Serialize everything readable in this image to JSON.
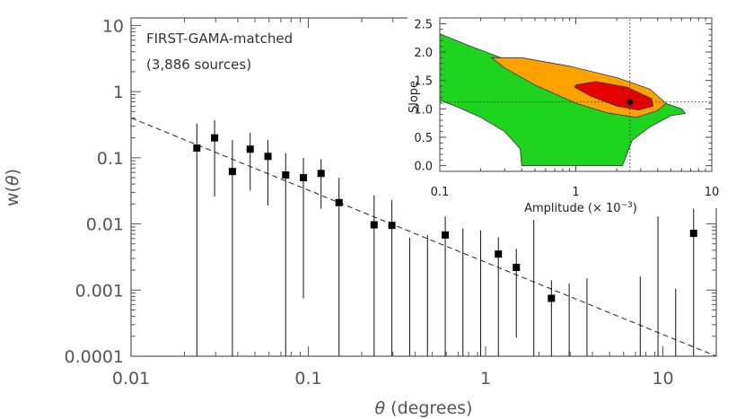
{
  "chart_data": [
    {
      "type": "scatter",
      "title": "",
      "xlabel_symbol": "θ",
      "xlabel_rest": " (degrees)",
      "ylabel_prefix": "w(",
      "ylabel_symbol": "θ",
      "ylabel_suffix": ")",
      "xscale": "log",
      "yscale": "log",
      "xlim": [
        0.01,
        20
      ],
      "ylim": [
        0.0001,
        13
      ],
      "x_tick_labels": [
        "0.01",
        "0.1",
        "1",
        "10"
      ],
      "x_tick_values": [
        0.01,
        0.1,
        1,
        10
      ],
      "y_tick_labels": [
        "0.0001",
        "0.001",
        "0.01",
        "0.1",
        "1",
        "10"
      ],
      "y_tick_values": [
        0.0001,
        0.001,
        0.01,
        0.1,
        1,
        10
      ],
      "annotations": [
        "FIRST-GAMA-matched",
        "(3,886 sources)"
      ],
      "points": [
        {
          "x": 0.0235,
          "y": 0.14,
          "ylo": 0.0001,
          "yhi": 0.33
        },
        {
          "x": 0.0296,
          "y": 0.2,
          "ylo": 0.026,
          "yhi": 0.37
        },
        {
          "x": 0.0373,
          "y": 0.062,
          "ylo": 0.0001,
          "yhi": 0.185
        },
        {
          "x": 0.047,
          "y": 0.135,
          "ylo": 0.032,
          "yhi": 0.24
        },
        {
          "x": 0.0592,
          "y": 0.105,
          "ylo": 0.019,
          "yhi": 0.185
        },
        {
          "x": 0.0745,
          "y": 0.055,
          "ylo": 0.0001,
          "yhi": 0.118
        },
        {
          "x": 0.0938,
          "y": 0.05,
          "ylo": 0.00075,
          "yhi": 0.1
        },
        {
          "x": 0.118,
          "y": 0.058,
          "ylo": 0.017,
          "yhi": 0.095
        },
        {
          "x": 0.149,
          "y": 0.021,
          "ylo": 0.0001,
          "yhi": 0.05
        },
        {
          "x": 0.235,
          "y": 0.0097,
          "ylo": 0.0001,
          "yhi": 0.027
        },
        {
          "x": 0.296,
          "y": 0.0095,
          "ylo": 0.0001,
          "yhi": 0.023
        },
        {
          "x": 0.592,
          "y": 0.0068,
          "ylo": 0.0001,
          "yhi": 0.013
        },
        {
          "x": 1.18,
          "y": 0.0035,
          "ylo": 0.0001,
          "yhi": 0.0063
        },
        {
          "x": 1.49,
          "y": 0.0022,
          "ylo": 0.00019,
          "yhi": 0.0042
        },
        {
          "x": 2.35,
          "y": 0.00075,
          "ylo": 0.0001,
          "yhi": 0.0014
        },
        {
          "x": 14.9,
          "y": 0.0072,
          "ylo": 0.0001,
          "yhi": 0.017
        }
      ],
      "bars_without_points": [
        {
          "x": 0.373,
          "yhi": 0.0062
        },
        {
          "x": 0.47,
          "yhi": 0.0068
        },
        {
          "x": 0.745,
          "yhi": 0.0085
        },
        {
          "x": 0.938,
          "yhi": 0.008
        },
        {
          "x": 1.87,
          "yhi": 0.0115
        },
        {
          "x": 2.96,
          "yhi": 0.00125
        },
        {
          "x": 3.73,
          "yhi": 0.0015
        },
        {
          "x": 7.45,
          "yhi": 0.0016
        },
        {
          "x": 9.38,
          "yhi": 0.013
        },
        {
          "x": 11.8,
          "yhi": 0.00105
        }
      ],
      "fit_line": {
        "style": "dashed",
        "points": [
          [
            0.01,
            0.4
          ],
          [
            20,
            0.0001
          ]
        ]
      }
    },
    {
      "type": "contour",
      "xlabel": "Amplitude (× 10",
      "xlabel_exponent": "−3",
      "xlabel_close": ")",
      "ylabel": "Slope",
      "xscale": "log",
      "xlim": [
        0.1,
        10
      ],
      "ylim": [
        -0.1,
        2.6
      ],
      "x_tick_labels": [
        "0.1",
        "1",
        "10"
      ],
      "x_tick_values": [
        0.1,
        1,
        10
      ],
      "y_tick_labels": [
        "0.0",
        "0.5",
        "1.0",
        "1.5",
        "2.0",
        "2.5"
      ],
      "y_tick_values": [
        0.0,
        0.5,
        1.0,
        1.5,
        2.0,
        2.5
      ],
      "best_fit": {
        "amplitude": 2.5,
        "slope": 1.12
      },
      "colors": {
        "outer": "#1fd41f",
        "middle": "#ffa200",
        "inner": "#e60000"
      },
      "contours": {
        "outer": [
          [
            0.1,
            2.32
          ],
          [
            0.17,
            2.1
          ],
          [
            0.32,
            1.85
          ],
          [
            0.7,
            1.65
          ],
          [
            1.5,
            1.45
          ],
          [
            3.0,
            1.25
          ],
          [
            6.0,
            1.0
          ],
          [
            6.4,
            0.92
          ],
          [
            5.0,
            0.88
          ],
          [
            3.5,
            0.68
          ],
          [
            2.6,
            0.45
          ],
          [
            2.2,
            0.0
          ],
          [
            0.4,
            0.0
          ],
          [
            0.39,
            0.3
          ],
          [
            0.3,
            0.6
          ],
          [
            0.2,
            0.85
          ],
          [
            0.13,
            1.05
          ],
          [
            0.1,
            1.15
          ]
        ],
        "middle": [
          [
            0.24,
            1.9
          ],
          [
            0.4,
            1.9
          ],
          [
            0.9,
            1.75
          ],
          [
            2.0,
            1.55
          ],
          [
            3.5,
            1.35
          ],
          [
            4.6,
            1.1
          ],
          [
            4.0,
            0.97
          ],
          [
            2.8,
            0.85
          ],
          [
            1.7,
            0.93
          ],
          [
            1.0,
            1.1
          ],
          [
            0.5,
            1.42
          ],
          [
            0.3,
            1.72
          ]
        ],
        "inner": [
          [
            1.0,
            1.42
          ],
          [
            1.4,
            1.48
          ],
          [
            2.4,
            1.38
          ],
          [
            3.6,
            1.18
          ],
          [
            3.7,
            1.05
          ],
          [
            2.9,
            0.98
          ],
          [
            2.0,
            1.05
          ],
          [
            1.3,
            1.22
          ],
          [
            0.98,
            1.38
          ]
        ]
      }
    }
  ]
}
